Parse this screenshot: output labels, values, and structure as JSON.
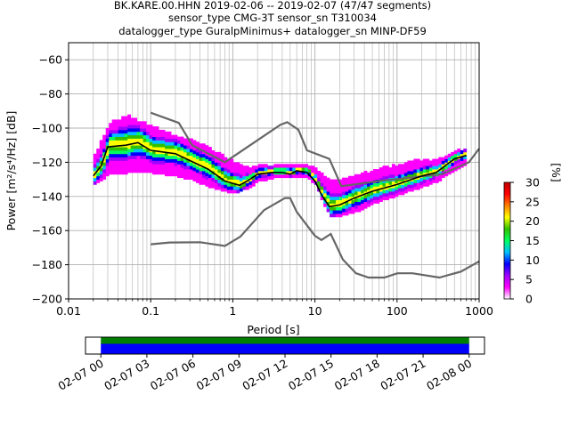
{
  "chart_data": {
    "type": "heatmap",
    "title": [
      "BK.KARE.00.HHN   2019-02-06 -- 2019-02-07  (47/47 segments)",
      "sensor_type CMG-3T sensor_sn T310034",
      "datalogger_type GuralpMinimus+ datalogger_sn MINP-DF59"
    ],
    "xlabel": "Period [s]",
    "ylabel": "Power [m²/s⁴/Hz] [dB]",
    "x_scale": "log",
    "xlim": [
      0.01,
      1000
    ],
    "ylim": [
      -200,
      -50
    ],
    "x_ticks": [
      {
        "value": 0.01,
        "label": "0.01"
      },
      {
        "value": 0.1,
        "label": "0.1"
      },
      {
        "value": 1,
        "label": "1"
      },
      {
        "value": 10,
        "label": "10"
      },
      {
        "value": 100,
        "label": "100"
      },
      {
        "value": 1000,
        "label": "1000"
      }
    ],
    "y_ticks": [
      -60,
      -80,
      -100,
      -120,
      -140,
      -160,
      -180,
      -200
    ],
    "grid": true,
    "colorbar": {
      "label": "[%]",
      "range": [
        0,
        30
      ],
      "ticks": [
        0,
        5,
        10,
        15,
        20,
        25,
        30
      ],
      "colors": [
        "#ffffff",
        "#ff00ff",
        "#a000ff",
        "#0000ff",
        "#00c0ff",
        "#00ff60",
        "#30c000",
        "#ffff00",
        "#ff8000",
        "#ff0000",
        "#c00000"
      ]
    },
    "noise_models": {
      "high": [
        [
          0.1,
          -91
        ],
        [
          0.22,
          -97
        ],
        [
          0.32,
          -110
        ],
        [
          0.8,
          -120
        ],
        [
          3.8,
          -98
        ],
        [
          4.6,
          -96.5
        ],
        [
          6.3,
          -101
        ],
        [
          8,
          -113
        ],
        [
          15,
          -118
        ],
        [
          21,
          -134
        ],
        [
          60,
          -131
        ],
        [
          355,
          -127
        ],
        [
          750,
          -120
        ],
        [
          1000,
          -112
        ]
      ],
      "low": [
        [
          0.1,
          -168
        ],
        [
          0.17,
          -167
        ],
        [
          0.4,
          -166.8
        ],
        [
          0.8,
          -169
        ],
        [
          1.24,
          -163.5
        ],
        [
          2.4,
          -148
        ],
        [
          4.3,
          -141
        ],
        [
          5,
          -141
        ],
        [
          6,
          -149
        ],
        [
          10,
          -163
        ],
        [
          12,
          -165.5
        ],
        [
          15.6,
          -162
        ],
        [
          21.9,
          -177
        ],
        [
          31.6,
          -185
        ],
        [
          45,
          -187.5
        ],
        [
          70,
          -187.5
        ],
        [
          101,
          -185
        ],
        [
          154,
          -185
        ],
        [
          328,
          -187.5
        ],
        [
          600,
          -184
        ],
        [
          1000,
          -178
        ]
      ]
    },
    "median_psd": [
      [
        0.02,
        -128
      ],
      [
        0.025,
        -122
      ],
      [
        0.03,
        -111
      ],
      [
        0.05,
        -110
      ],
      [
        0.07,
        -108.5
      ],
      [
        0.1,
        -113
      ],
      [
        0.2,
        -115
      ],
      [
        0.3,
        -119
      ],
      [
        0.5,
        -124
      ],
      [
        0.8,
        -131
      ],
      [
        1.2,
        -133.5
      ],
      [
        1.5,
        -131
      ],
      [
        2,
        -127
      ],
      [
        3,
        -126
      ],
      [
        4,
        -126
      ],
      [
        5,
        -127
      ],
      [
        6,
        -125
      ],
      [
        8,
        -126
      ],
      [
        10,
        -131
      ],
      [
        12,
        -139
      ],
      [
        15,
        -146
      ],
      [
        20,
        -145
      ],
      [
        30,
        -141
      ],
      [
        50,
        -137
      ],
      [
        100,
        -133
      ],
      [
        200,
        -128
      ],
      [
        300,
        -126
      ],
      [
        500,
        -118
      ],
      [
        700,
        -116
      ]
    ],
    "psd_band": [
      [
        0.02,
        -133,
        -116
      ],
      [
        0.03,
        -127,
        -98
      ],
      [
        0.05,
        -126,
        -93
      ],
      [
        0.1,
        -126,
        -100
      ],
      [
        0.2,
        -128,
        -105
      ],
      [
        0.3,
        -130,
        -108
      ],
      [
        0.5,
        -134,
        -112
      ],
      [
        1,
        -138,
        -120
      ],
      [
        1.5,
        -135,
        -124
      ],
      [
        2,
        -131,
        -122
      ],
      [
        3,
        -129,
        -122
      ],
      [
        5,
        -129,
        -121
      ],
      [
        8,
        -129,
        -123
      ],
      [
        10,
        -133,
        -124
      ],
      [
        12,
        -143,
        -128
      ],
      [
        15,
        -152,
        -131
      ],
      [
        20,
        -151,
        -131
      ],
      [
        30,
        -149,
        -129
      ],
      [
        50,
        -144,
        -125
      ],
      [
        100,
        -139,
        -122
      ],
      [
        200,
        -134,
        -119
      ],
      [
        300,
        -131,
        -119
      ],
      [
        500,
        -124,
        -114
      ],
      [
        700,
        -120,
        -112
      ]
    ],
    "time_axis": {
      "range": [
        "02-06 23:00",
        "02-08 01:00"
      ],
      "ticks": [
        "02-07 00",
        "02-07 03",
        "02-07 06",
        "02-07 09",
        "02-07 12",
        "02-07 15",
        "02-07 18",
        "02-07 21",
        "02-08 00"
      ],
      "coverage": [
        "02-07 00",
        "02-08 00"
      ],
      "coverage_colors": [
        "#008000",
        "#0000ff"
      ]
    }
  }
}
